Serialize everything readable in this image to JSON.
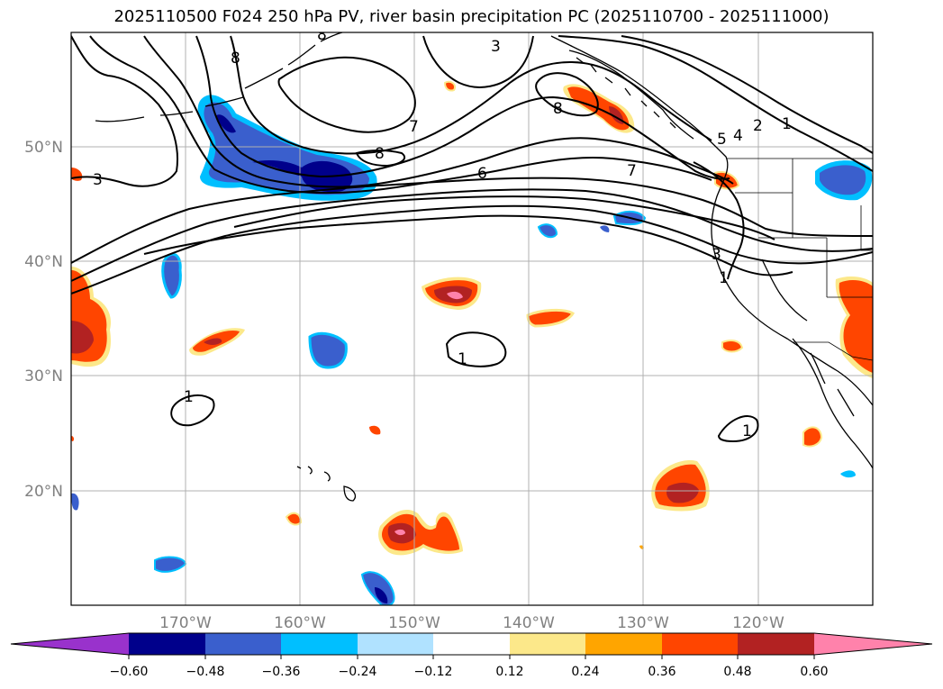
{
  "title": "2025110500 F024 250 hPa PV, river basin precipitation PC (2025110700 - 2025111000)",
  "lat_labels": [
    "50°N",
    "40°N",
    "30°N",
    "20°N"
  ],
  "lon_labels": [
    "170°W",
    "160°W",
    "150°W",
    "140°W",
    "130°W",
    "120°W"
  ],
  "colorbar": {
    "ticks": [
      "−0.60",
      "−0.48",
      "−0.36",
      "−0.24",
      "−0.12",
      "0.12",
      "0.24",
      "0.36",
      "0.48",
      "0.60"
    ],
    "colors": [
      "#9932cc",
      "#00008b",
      "#3a5fcd",
      "#00bfff",
      "#b0e2ff",
      "#ffffff",
      "#fce88a",
      "#ffa500",
      "#ff4500",
      "#b22222",
      "#ff82ab"
    ]
  },
  "contour_labels": [
    "3",
    "8",
    "8",
    "3",
    "7",
    "8",
    "6",
    "8",
    "7",
    "2",
    "1",
    "5",
    "4",
    "3",
    "1",
    "1",
    "1",
    "1"
  ],
  "colors": {
    "coast": "#000000",
    "grid": "#b0b0b0",
    "contour": "#000000"
  }
}
